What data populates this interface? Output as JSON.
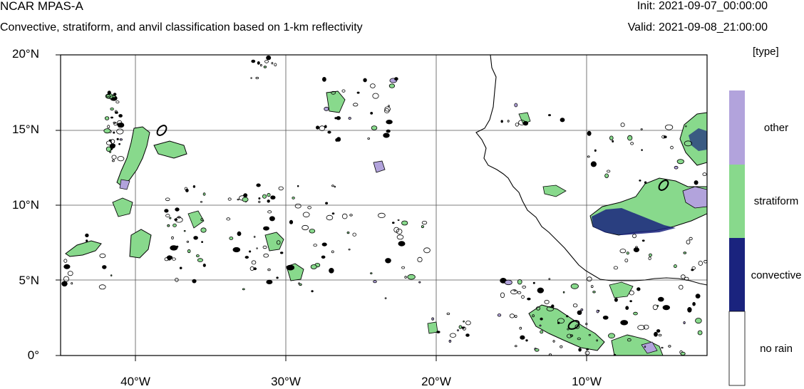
{
  "header": {
    "title": "NCAR MPAS-A",
    "subtitle": "Convective, stratiform, and anvil classification based on 1-km reflectivity",
    "init": "Init: 2021-09-07_00:00:00",
    "valid": "Valid: 2021-09-08_21:00:00"
  },
  "map": {
    "lat_labels": [
      "20°N",
      "15°N",
      "10°N",
      "5°N",
      "0°"
    ],
    "lon_labels": [
      "40°W",
      "30°W",
      "20°W",
      "10°W"
    ],
    "lon_range": [
      -45,
      -2.8
    ],
    "lat_range": [
      0,
      20
    ],
    "gridlines": true,
    "colors": {
      "no_rain": "#ffffff",
      "convective": "#1a237e",
      "stratiform": "#88d98c",
      "other": "#b2a3dc",
      "contour": "#000000"
    }
  },
  "legend": {
    "units": "[type]",
    "categories": [
      {
        "label": "other",
        "color": "#b2a3dc"
      },
      {
        "label": "stratiform",
        "color": "#88d98c"
      },
      {
        "label": "convective",
        "color": "#1a237e"
      },
      {
        "label": "no rain",
        "color": "#ffffff"
      }
    ]
  }
}
